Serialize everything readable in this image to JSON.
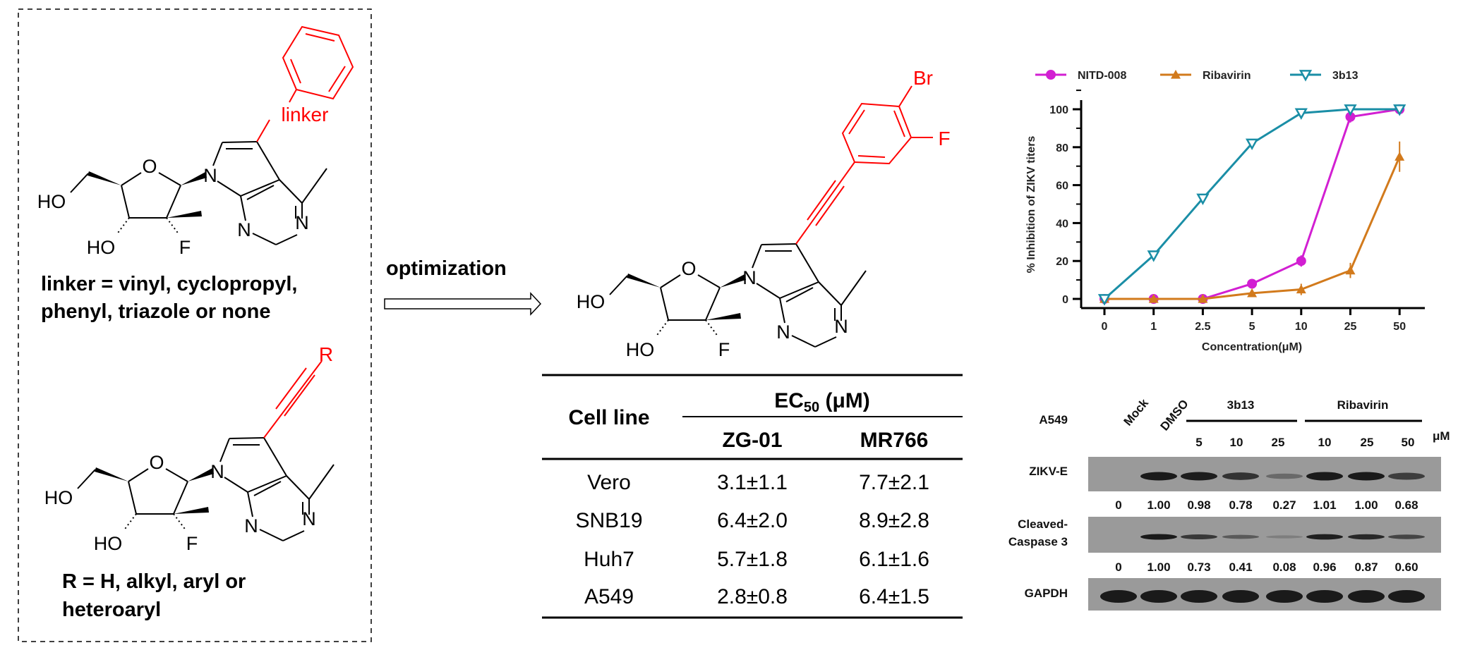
{
  "left_panel": {
    "top_structure": {
      "substituent_label": "linker",
      "atoms": {
        "ho_1": "HO",
        "ho_2": "HO",
        "o": "O",
        "f": "F",
        "n1": "N",
        "n2": "N",
        "n3": "N"
      }
    },
    "linker_text": [
      "linker = vinyl, cyclopropyl,",
      "phenyl, triazole or none"
    ],
    "bottom_structure": {
      "substituent_label": "R",
      "atoms": {
        "ho_1": "HO",
        "ho_2": "HO",
        "o": "O",
        "f": "F",
        "n1": "N",
        "n2": "N",
        "n3": "N"
      }
    },
    "r_text": [
      "R = H, alkyl, aryl or",
      "heteroaryl"
    ]
  },
  "arrow": {
    "label": "optimization"
  },
  "compound": {
    "atoms": {
      "br": "Br",
      "f_aryl": "F",
      "ho_1": "HO",
      "ho_2": "HO",
      "o": "O",
      "f": "F",
      "n1": "N",
      "n2": "N",
      "n3": "N"
    }
  },
  "table": {
    "row_header": "Cell line",
    "group_header": "EC",
    "group_sub": "50",
    "group_unit": " (μM)",
    "columns": [
      "ZG-01",
      "MR766"
    ],
    "rows": [
      {
        "cell": "Vero",
        "values": [
          "3.1±1.1",
          "7.7±2.1"
        ]
      },
      {
        "cell": "SNB19",
        "values": [
          "6.4±2.0",
          "8.9±2.8"
        ]
      },
      {
        "cell": "Huh7",
        "values": [
          "5.7±1.8",
          "6.1±1.6"
        ]
      },
      {
        "cell": "A549",
        "values": [
          "2.8±0.8",
          "6.4±1.5"
        ]
      }
    ]
  },
  "chart_data": {
    "type": "line",
    "xlabel": "Concentration(μM)",
    "ylabel": "% Inhibition of ZIKV titers",
    "categories": [
      "0",
      "1",
      "2.5",
      "5",
      "10",
      "25",
      "50"
    ],
    "ylim": [
      0,
      100
    ],
    "yticks": [
      "0",
      "20",
      "40",
      "60",
      "80",
      "100"
    ],
    "legend_position": "top",
    "series": [
      {
        "name": "NITD-008",
        "color": "#d21fd2",
        "marker": "circle",
        "values": [
          0,
          0,
          0,
          8,
          20,
          96,
          100
        ],
        "errors": [
          0,
          0,
          0,
          1,
          3,
          3,
          1
        ]
      },
      {
        "name": "Ribavirin",
        "color": "#d27a1c",
        "marker": "triangle-up",
        "values": [
          0,
          0,
          0,
          3,
          5,
          15,
          75
        ],
        "errors": [
          0,
          0,
          0,
          1,
          3,
          4,
          8
        ]
      },
      {
        "name": "3b13",
        "color": "#1a8ea6",
        "marker": "triangle-down-open",
        "values": [
          0,
          23,
          53,
          82,
          98,
          100,
          100
        ],
        "errors": [
          1,
          2,
          2,
          2,
          2,
          1,
          1
        ]
      }
    ]
  },
  "blot": {
    "cell_line": "A549",
    "lanes": [
      "Mock",
      "DMSO"
    ],
    "groups": [
      {
        "name": "3b13",
        "doses": [
          "5",
          "10",
          "25"
        ]
      },
      {
        "name": "Ribavirin",
        "doses": [
          "10",
          "25",
          "50"
        ]
      }
    ],
    "unit": "μM",
    "rows": [
      {
        "label": [
          "ZIKV-E"
        ],
        "quant": [
          "0",
          "1.00",
          "0.98",
          "0.78",
          "0.27",
          "1.01",
          "1.00",
          "0.68"
        ]
      },
      {
        "label": [
          "Cleaved-",
          "Caspase 3"
        ],
        "quant": [
          "0",
          "1.00",
          "0.73",
          "0.41",
          "0.08",
          "0.96",
          "0.87",
          "0.60"
        ]
      },
      {
        "label": [
          "GAPDH"
        ],
        "quant": []
      }
    ]
  }
}
